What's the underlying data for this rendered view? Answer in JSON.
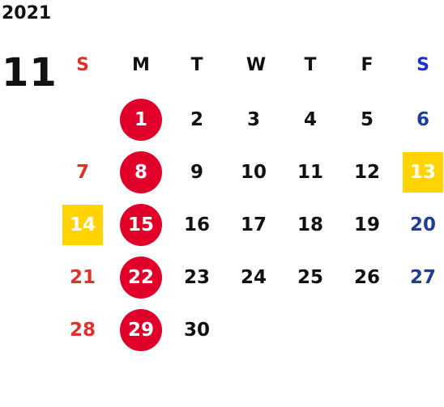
{
  "year": "2021",
  "month": "11",
  "weekdays": [
    "S",
    "M",
    "T",
    "W",
    "T",
    "F",
    "S"
  ],
  "colors": {
    "sunday": "#e0302a",
    "saturday_header": "#1a2fcf",
    "saturday": "#1f3f95",
    "holiday_circle": "#e0002a",
    "highlight_box": "#ffd400",
    "text": "#111111"
  },
  "weeks": [
    [
      null,
      {
        "d": "1",
        "mark": "circle"
      },
      {
        "d": "2"
      },
      {
        "d": "3"
      },
      {
        "d": "4"
      },
      {
        "d": "5"
      },
      {
        "d": "6"
      }
    ],
    [
      {
        "d": "7"
      },
      {
        "d": "8",
        "mark": "circle"
      },
      {
        "d": "9"
      },
      {
        "d": "10"
      },
      {
        "d": "11"
      },
      {
        "d": "12"
      },
      {
        "d": "13",
        "mark": "box"
      }
    ],
    [
      {
        "d": "14",
        "mark": "box"
      },
      {
        "d": "15",
        "mark": "circle"
      },
      {
        "d": "16"
      },
      {
        "d": "17"
      },
      {
        "d": "18"
      },
      {
        "d": "19"
      },
      {
        "d": "20"
      }
    ],
    [
      {
        "d": "21"
      },
      {
        "d": "22",
        "mark": "circle"
      },
      {
        "d": "23"
      },
      {
        "d": "24"
      },
      {
        "d": "25"
      },
      {
        "d": "26"
      },
      {
        "d": "27"
      }
    ],
    [
      {
        "d": "28"
      },
      {
        "d": "29",
        "mark": "circle"
      },
      {
        "d": "30"
      },
      null,
      null,
      null,
      null
    ]
  ]
}
